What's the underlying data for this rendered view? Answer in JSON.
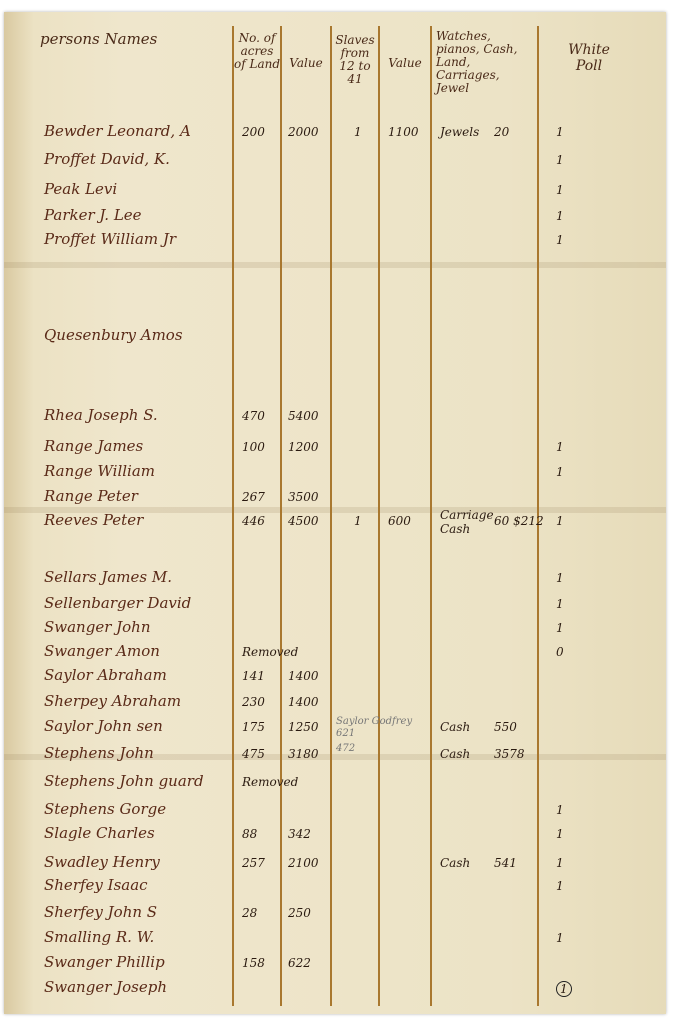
{
  "headers": {
    "names": "persons Names",
    "acres": "No. of acres of Land",
    "land_value": "Value",
    "slaves": "Slaves from 12 to 41",
    "slave_value": "Value",
    "watches": "Watches, pianos, Cash, Land, Carriages, Jewel",
    "white_poll": "White Poll"
  },
  "rows": [
    {
      "name": "Bewder Leonard, A",
      "acres": "200",
      "value": "2000",
      "slaves": "1",
      "slave_value": "1100",
      "watches": "Jewels",
      "watches_value": "20",
      "poll": "1"
    },
    {
      "name": "Proffet David, K.",
      "poll": "1"
    },
    {
      "name": "Peak Levi",
      "poll": "1"
    },
    {
      "name": "Parker J. Lee",
      "poll": "1"
    },
    {
      "name": "Proffet William Jr",
      "poll": "1"
    },
    {
      "name": "Quesenbury Amos"
    },
    {
      "name": "Rhea Joseph S.",
      "acres": "470",
      "value": "5400"
    },
    {
      "name": "Range James",
      "acres": "100",
      "value": "1200",
      "poll": "1"
    },
    {
      "name": "Range William",
      "poll": "1"
    },
    {
      "name": "Range Peter",
      "acres": "267",
      "value": "3500"
    },
    {
      "name": "Reeves Peter",
      "acres": "446",
      "value": "4500",
      "slaves": "1",
      "slave_value": "600",
      "watches": "Carriage Cash",
      "watches_value": "60 $212",
      "poll": "1"
    },
    {
      "name": "Sellars James M.",
      "poll": "1"
    },
    {
      "name": "Sellenbarger David",
      "poll": "1"
    },
    {
      "name": "Swanger John",
      "poll": "1"
    },
    {
      "name": "Swanger Amon",
      "acres": "Removed",
      "poll": "0"
    },
    {
      "name": "Saylor Abraham",
      "acres": "141",
      "value": "1400"
    },
    {
      "name": "Sherpey Abraham",
      "acres": "230",
      "value": "1400"
    },
    {
      "name": "Saylor John sen",
      "acres": "175",
      "value": "1250",
      "watches": "Cash",
      "watches_value": "550",
      "note": "Saylor Godfrey 621"
    },
    {
      "name": "Stephens John",
      "acres": "475",
      "value": "3180",
      "watches": "Cash",
      "watches_value": "3578",
      "note": "472"
    },
    {
      "name": "Stephens John guard",
      "acres": "Removed"
    },
    {
      "name": "Stephens Gorge",
      "poll": "1"
    },
    {
      "name": "Slagle Charles",
      "acres": "88",
      "value": "342",
      "poll": "1"
    },
    {
      "name": "Swadley Henry",
      "acres": "257",
      "value": "2100",
      "watches": "Cash",
      "watches_value": "541",
      "poll": "1"
    },
    {
      "name": "Sherfey Isaac",
      "poll": "1"
    },
    {
      "name": "Sherfey John S",
      "acres": "28",
      "value": "250"
    },
    {
      "name": "Smalling R. W.",
      "poll": "1"
    },
    {
      "name": "Swanger Phillip",
      "acres": "158",
      "value": "622"
    },
    {
      "name": "Swanger Joseph",
      "poll": "1"
    }
  ]
}
